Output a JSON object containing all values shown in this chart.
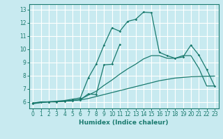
{
  "xlabel": "Humidex (Indice chaleur)",
  "bg_color": "#c8eaf0",
  "line_color": "#1a7a6e",
  "grid_color": "#ffffff",
  "ylim": [
    5.5,
    13.4
  ],
  "xlim": [
    -0.5,
    23.5
  ],
  "yticks": [
    6,
    7,
    8,
    9,
    10,
    11,
    12,
    13
  ],
  "xticks": [
    0,
    1,
    2,
    3,
    4,
    5,
    6,
    7,
    8,
    9,
    10,
    11,
    12,
    13,
    14,
    15,
    16,
    17,
    18,
    19,
    20,
    21,
    22,
    23
  ],
  "line1_x": [
    0,
    1,
    2,
    3,
    4,
    5,
    6,
    7,
    8,
    9,
    10,
    11,
    12,
    13,
    14,
    15,
    16,
    17,
    18,
    19,
    20,
    21,
    22,
    23
  ],
  "line1_y": [
    5.9,
    6.0,
    6.0,
    6.0,
    6.05,
    6.1,
    6.15,
    6.25,
    6.4,
    6.55,
    6.7,
    6.85,
    7.0,
    7.15,
    7.3,
    7.45,
    7.6,
    7.7,
    7.8,
    7.85,
    7.9,
    7.92,
    7.94,
    7.95
  ],
  "line2_x": [
    0,
    1,
    2,
    3,
    4,
    5,
    6,
    7,
    8,
    9,
    10,
    11,
    12,
    13,
    14,
    15,
    16,
    17,
    18,
    19,
    20,
    21,
    22,
    23
  ],
  "line2_y": [
    5.9,
    5.95,
    6.0,
    6.0,
    6.05,
    6.1,
    6.2,
    6.5,
    6.8,
    7.25,
    7.65,
    8.1,
    8.5,
    8.85,
    9.25,
    9.5,
    9.5,
    9.3,
    9.3,
    9.5,
    9.5,
    8.55,
    7.2,
    7.2
  ],
  "line3_x": [
    0,
    2,
    3,
    4,
    5,
    6,
    7,
    8,
    9,
    10,
    11,
    12,
    13,
    14,
    15,
    16,
    17,
    18,
    19,
    20,
    21,
    22,
    23
  ],
  "line3_y": [
    5.9,
    6.0,
    6.05,
    6.1,
    6.2,
    6.3,
    7.8,
    8.85,
    10.3,
    11.6,
    11.35,
    12.1,
    12.25,
    12.8,
    12.75,
    9.75,
    9.5,
    9.3,
    9.4,
    10.3,
    9.55,
    8.45,
    7.2
  ],
  "line4_x": [
    0,
    1,
    2,
    3,
    4,
    5,
    6,
    7,
    8,
    9,
    10,
    11
  ],
  "line4_y": [
    5.85,
    5.95,
    6.0,
    6.0,
    6.05,
    6.1,
    6.15,
    6.6,
    6.55,
    8.8,
    8.85,
    10.35
  ]
}
